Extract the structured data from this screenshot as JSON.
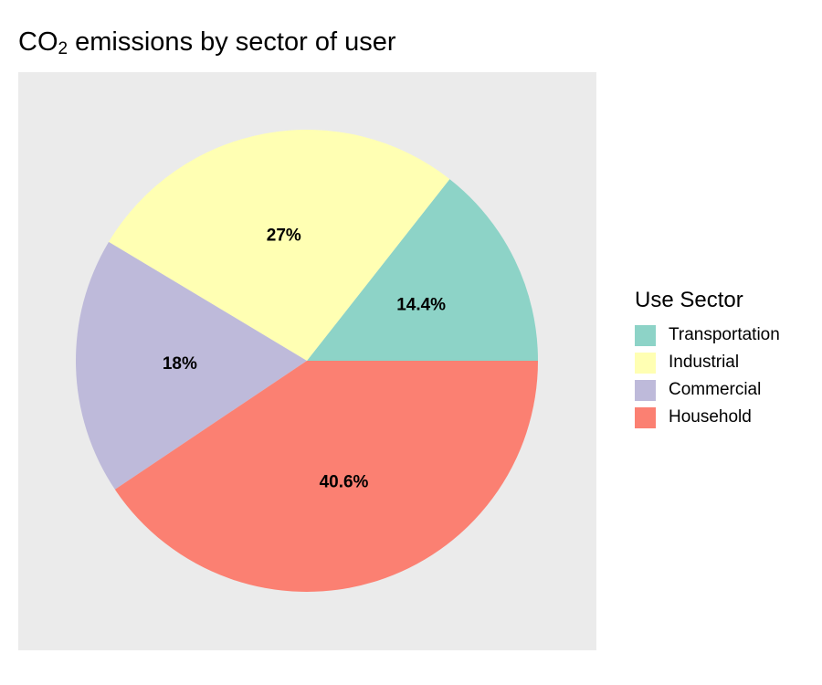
{
  "chart_data": {
    "type": "pie",
    "title": {
      "main": "CO",
      "subscript": "2",
      "rest": " emissions by sector of user"
    },
    "legend_title": "Use Sector",
    "legend_placement": "right",
    "start": "3 o'clock, counter-clockwise",
    "slices": [
      {
        "label": "Transportation",
        "value": 14.4,
        "display": "14.4%",
        "color": "#8dd3c7"
      },
      {
        "label": "Industrial",
        "value": 27,
        "display": "27%",
        "color": "#ffffb3"
      },
      {
        "label": "Commercial",
        "value": 18,
        "display": "18%",
        "color": "#bebada"
      },
      {
        "label": "Household",
        "value": 40.6,
        "display": "40.6%",
        "color": "#fb8072"
      }
    ],
    "panel_background": "#ebebeb"
  }
}
